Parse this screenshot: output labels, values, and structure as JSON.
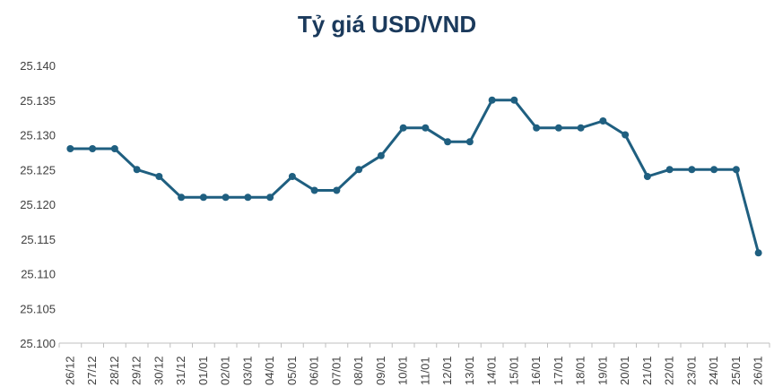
{
  "chart_data": {
    "type": "line",
    "title": "Tỷ giá USD/VND",
    "xlabel": "",
    "ylabel": "",
    "categories": [
      "26/12",
      "27/12",
      "28/12",
      "29/12",
      "30/12",
      "31/12",
      "01/01",
      "02/01",
      "03/01",
      "04/01",
      "05/01",
      "06/01",
      "07/01",
      "08/01",
      "09/01",
      "10/01",
      "11/01",
      "12/01",
      "13/01",
      "14/01",
      "15/01",
      "16/01",
      "17/01",
      "18/01",
      "19/01",
      "20/01",
      "21/01",
      "22/01",
      "23/01",
      "24/01",
      "25/01",
      "26/01"
    ],
    "series": [
      {
        "values": [
          25128,
          25128,
          25128,
          25125,
          25124,
          25121,
          25121,
          25121,
          25121,
          25121,
          25124,
          25122,
          25122,
          25125,
          25127,
          25131,
          25131,
          25129,
          25129,
          25135,
          25135,
          25131,
          25131,
          25131,
          25132,
          25130,
          25124,
          25125,
          25125,
          25125,
          25125,
          25113
        ],
        "color": "#1f5f80"
      }
    ],
    "ylim": [
      25100,
      25140
    ],
    "yticks": [
      "25.100",
      "25.105",
      "25.110",
      "25.115",
      "25.120",
      "25.125",
      "25.130",
      "25.135",
      "25.140"
    ],
    "grid": false,
    "legend": "none"
  }
}
